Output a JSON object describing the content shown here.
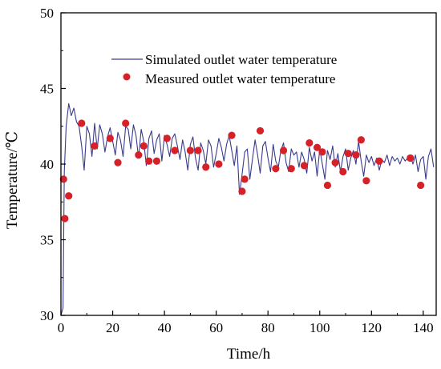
{
  "chart_data": {
    "type": "line",
    "xlabel": "Time/h",
    "ylabel": "Temperature/℃",
    "xlim": [
      0,
      145
    ],
    "ylim": [
      30,
      50
    ],
    "x_ticks": [
      0,
      20,
      40,
      60,
      80,
      100,
      120,
      140
    ],
    "y_ticks": [
      30,
      35,
      40,
      45,
      50
    ],
    "grid": false,
    "legend_position": "top-right",
    "series": [
      {
        "name": "Simulated outlet water temperature",
        "style": "line",
        "color": "#3a3a8c",
        "x": [
          0,
          0.8,
          1.3,
          2,
          3,
          4,
          5,
          6,
          7,
          8,
          9,
          10,
          11,
          12,
          13,
          14,
          15,
          16,
          17,
          18,
          19,
          20,
          21,
          22,
          23,
          24,
          25,
          26,
          27,
          28,
          29,
          30,
          31,
          32,
          33,
          34,
          35,
          36,
          37,
          38,
          39,
          40,
          41,
          42,
          43,
          44,
          45,
          46,
          47,
          48,
          49,
          50,
          51,
          52,
          53,
          54,
          55,
          56,
          57,
          58,
          59,
          60,
          61,
          62,
          63,
          64,
          65,
          66,
          67,
          68,
          69,
          70,
          71,
          72,
          73,
          74,
          75,
          76,
          77,
          78,
          79,
          80,
          81,
          82,
          83,
          84,
          85,
          86,
          87,
          88,
          89,
          90,
          91,
          92,
          93,
          94,
          95,
          96,
          97,
          98,
          99,
          100,
          101,
          102,
          103,
          104,
          105,
          106,
          107,
          108,
          109,
          110,
          111,
          112,
          113,
          114,
          115,
          116,
          117,
          118,
          119,
          120,
          121,
          122,
          123,
          124,
          125,
          126,
          127,
          128,
          129,
          130,
          131,
          132,
          133,
          134,
          135,
          136,
          137,
          138,
          139,
          140,
          141,
          142,
          143,
          144
        ],
        "y": [
          30.0,
          30.5,
          39.5,
          42.5,
          44.0,
          43.2,
          43.7,
          42.8,
          42.5,
          41.2,
          39.6,
          42.5,
          42.0,
          40.5,
          42.7,
          41.0,
          42.6,
          42.0,
          40.8,
          41.8,
          42.4,
          41.5,
          40.6,
          42.1,
          41.6,
          40.5,
          42.5,
          42.3,
          41.0,
          42.6,
          41.9,
          40.4,
          42.3,
          41.5,
          39.9,
          41.7,
          42.2,
          40.7,
          41.6,
          42.0,
          40.2,
          41.9,
          41.3,
          40.5,
          41.7,
          42.0,
          41.2,
          40.3,
          41.6,
          40.8,
          39.6,
          41.3,
          41.8,
          40.4,
          39.6,
          41.4,
          40.9,
          40.0,
          41.6,
          41.2,
          39.8,
          40.7,
          41.7,
          41.1,
          40.2,
          41.3,
          41.9,
          40.9,
          39.9,
          41.2,
          38.0,
          39.3,
          40.8,
          41.0,
          39.0,
          40.3,
          41.6,
          40.6,
          39.4,
          41.2,
          41.5,
          40.4,
          39.5,
          41.3,
          40.2,
          39.8,
          40.9,
          41.4,
          40.1,
          39.5,
          41.0,
          40.6,
          40.8,
          39.8,
          40.8,
          40.3,
          39.4,
          41.1,
          40.2,
          40.8,
          39.2,
          41.0,
          40.0,
          39.0,
          40.9,
          40.3,
          41.2,
          39.8,
          40.7,
          39.5,
          40.5,
          41.0,
          39.6,
          40.4,
          40.9,
          40.0,
          41.5,
          40.2,
          39.2,
          40.6,
          40.1,
          40.5,
          39.9,
          40.4,
          39.6,
          40.3,
          40.1,
          40.6,
          39.9,
          40.5,
          40.2,
          40.4,
          40.0,
          40.5,
          40.2,
          40.4,
          40.6,
          40.0,
          40.6,
          39.5,
          40.3,
          40.5,
          39.0,
          40.5,
          41.0,
          39.8
        ]
      },
      {
        "name": "Measured outlet water temperature",
        "style": "scatter",
        "color": "#d62128",
        "x": [
          1,
          1.5,
          3,
          8,
          13,
          19,
          22,
          25,
          30,
          32,
          34,
          37,
          41,
          44,
          50,
          53,
          56,
          61,
          66,
          70,
          71,
          77,
          83,
          86,
          89,
          94,
          96,
          99,
          101,
          103,
          106,
          109,
          111,
          114,
          116,
          118,
          123,
          135,
          139
        ],
        "y": [
          39.0,
          36.4,
          37.9,
          42.7,
          41.2,
          41.7,
          40.1,
          42.7,
          40.6,
          41.2,
          40.2,
          40.2,
          41.7,
          40.9,
          40.9,
          40.9,
          39.8,
          40.0,
          41.9,
          38.2,
          39.0,
          42.2,
          39.7,
          40.9,
          39.7,
          39.9,
          41.4,
          41.1,
          40.8,
          38.6,
          40.1,
          39.5,
          40.7,
          40.6,
          41.6,
          38.9,
          40.2,
          40.4,
          38.6
        ]
      }
    ]
  }
}
